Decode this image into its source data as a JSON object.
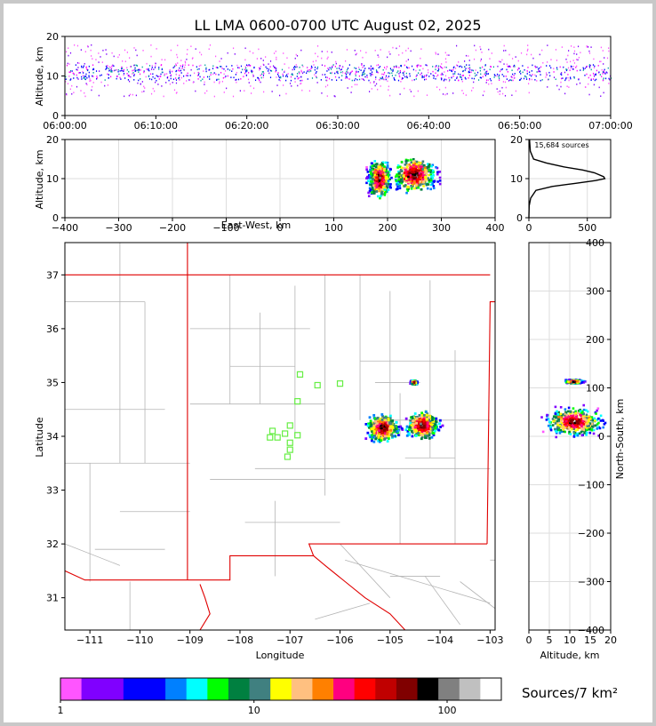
{
  "title": "LL LMA 0600-0700 UTC August 02, 2025",
  "colorbar": {
    "label": "Sources/7 km²",
    "ticks": [
      "1",
      "10",
      "100"
    ],
    "colors": [
      "#ff55ff",
      "#8000ff",
      "#8000ff",
      "#0000ff",
      "#0000ff",
      "#0080ff",
      "#00ffff",
      "#00ff00",
      "#008040",
      "#408080",
      "#ffff00",
      "#ffc080",
      "#ff8000",
      "#ff0080",
      "#ff0000",
      "#c00000",
      "#800000",
      "#000000",
      "#808080",
      "#c0c0c0",
      "#ffffff"
    ]
  },
  "chart_data": [
    {
      "type": "scatter",
      "name": "altitude-time",
      "xlabel": "",
      "ylabel": "Altitude, km",
      "x_ticks": [
        "06:00:00",
        "06:10:00",
        "06:20:00",
        "06:30:00",
        "06:40:00",
        "06:50:00",
        "07:00:00"
      ],
      "xlim": [
        "06:00:00",
        "07:00:00"
      ],
      "ylim": [
        0,
        20
      ],
      "y_ticks": [
        0,
        10,
        20
      ],
      "source_altitude_band_km": [
        5,
        18
      ],
      "source_altitude_core_km": [
        9,
        13
      ]
    },
    {
      "type": "heatmap",
      "name": "east-west-altitude",
      "xlabel": "East-West, km",
      "ylabel": "Altitude, km",
      "xlim": [
        -400,
        400
      ],
      "x_ticks": [
        -400,
        -300,
        -200,
        -100,
        0,
        100,
        200,
        300,
        400
      ],
      "ylim": [
        0,
        20
      ],
      "y_ticks": [
        0,
        10,
        20
      ],
      "clusters": [
        {
          "x": [
            160,
            215
          ],
          "y": [
            3,
            18
          ],
          "peak": [
            185,
            10
          ]
        },
        {
          "x": [
            215,
            320
          ],
          "y": [
            5,
            19
          ],
          "peak": [
            250,
            11
          ]
        }
      ]
    },
    {
      "type": "line",
      "name": "altitude-histogram",
      "annotation": "15,684 sources",
      "xlim": [
        0,
        700
      ],
      "x_ticks": [
        0,
        500
      ],
      "ylim": [
        0,
        20
      ],
      "y_ticks": [
        0,
        10,
        20
      ],
      "points": [
        [
          0,
          0
        ],
        [
          2,
          3
        ],
        [
          15,
          5
        ],
        [
          60,
          7
        ],
        [
          200,
          8
        ],
        [
          400,
          8.8
        ],
        [
          570,
          9.5
        ],
        [
          650,
          10
        ],
        [
          640,
          10.5
        ],
        [
          560,
          11.5
        ],
        [
          460,
          12.2
        ],
        [
          300,
          13
        ],
        [
          150,
          14
        ],
        [
          40,
          15
        ],
        [
          12,
          17
        ],
        [
          5,
          20
        ]
      ]
    },
    {
      "type": "heatmap",
      "name": "plan-view",
      "xlabel": "Longitude",
      "ylabel": "Latitude",
      "xlim": [
        -111.5,
        -102.9
      ],
      "x_ticks": [
        -111,
        -110,
        -109,
        -108,
        -107,
        -106,
        -105,
        -104,
        -103
      ],
      "ylim": [
        30.4,
        37.6
      ],
      "y_ticks": [
        31,
        32,
        33,
        34,
        35,
        36,
        37
      ],
      "stations": [
        [
          -106.8,
          35.15
        ],
        [
          -106.45,
          34.95
        ],
        [
          -106.0,
          34.98
        ],
        [
          -106.85,
          34.65
        ],
        [
          -107.35,
          34.1
        ],
        [
          -107.0,
          34.2
        ],
        [
          -107.4,
          33.98
        ],
        [
          -107.25,
          33.98
        ],
        [
          -107.1,
          34.05
        ],
        [
          -106.85,
          34.02
        ],
        [
          -107.0,
          33.88
        ],
        [
          -107.0,
          33.75
        ],
        [
          -107.05,
          33.62
        ]
      ],
      "clusters": [
        {
          "lon": [
            -105.5,
            -104.7
          ],
          "lat": [
            33.85,
            34.55
          ],
          "peak": [
            -105.15,
            34.15
          ]
        },
        {
          "lon": [
            -104.7,
            -103.9
          ],
          "lat": [
            33.85,
            34.55
          ],
          "peak": [
            -104.35,
            34.2
          ]
        },
        {
          "lon": [
            -104.6,
            -104.45
          ],
          "lat": [
            34.95,
            35.05
          ],
          "peak": [
            -104.52,
            35.0
          ]
        }
      ]
    },
    {
      "type": "heatmap",
      "name": "north-south-altitude",
      "xlabel": "Altitude, km",
      "ylabel": "North-South, km",
      "xlim": [
        0,
        20
      ],
      "x_ticks": [
        0,
        5,
        10,
        15,
        20
      ],
      "ylim": [
        -400,
        400
      ],
      "y_ticks": [
        -400,
        -300,
        -200,
        -100,
        0,
        100,
        200,
        300,
        400
      ],
      "clusters": [
        {
          "alt": [
            2,
            20
          ],
          "ns": [
            -15,
            65
          ],
          "peak": [
            11,
            30
          ]
        },
        {
          "alt": [
            9,
            15
          ],
          "ns": [
            108,
            118
          ],
          "peak": [
            11,
            113
          ]
        }
      ]
    }
  ]
}
